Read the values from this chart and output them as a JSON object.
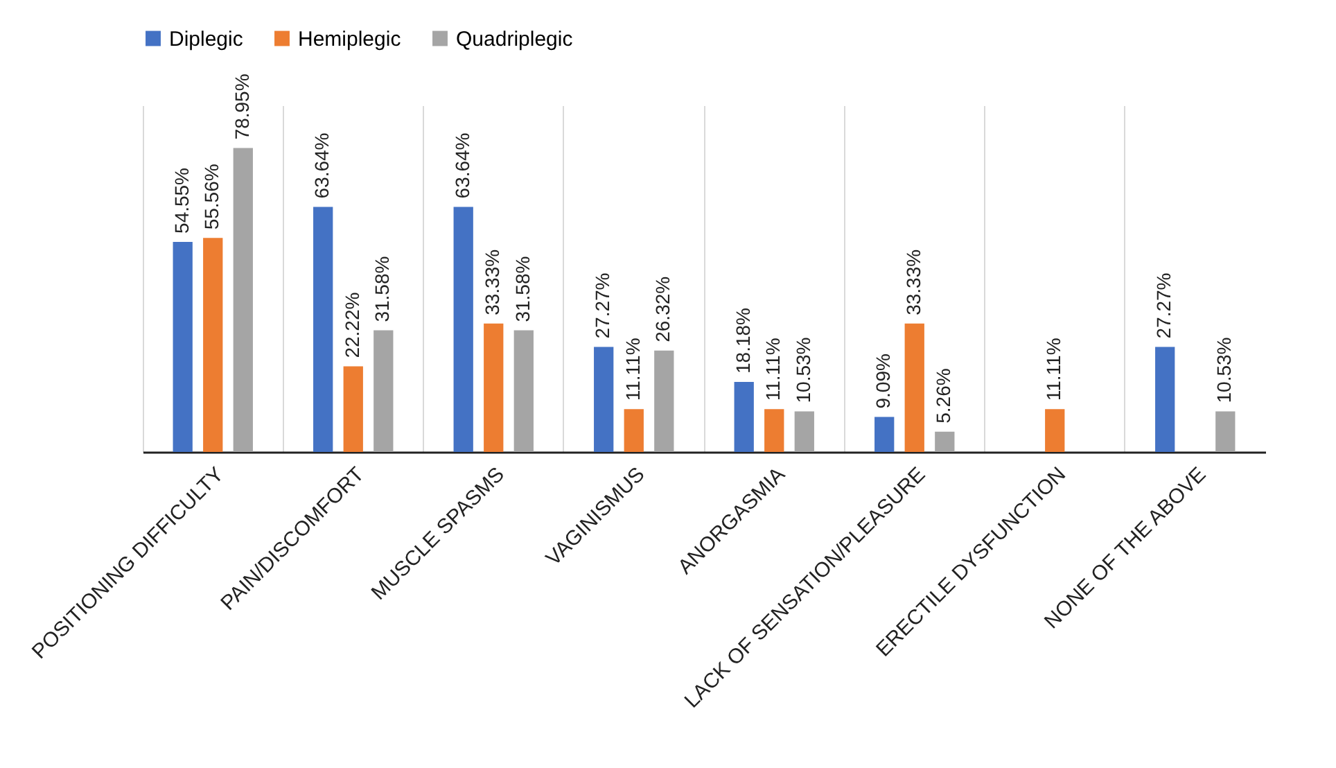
{
  "chart_data": {
    "type": "bar",
    "categories": [
      "POSITIONING DIFFICULTY",
      "PAIN/DISCOMFORT",
      "MUSCLE SPASMS",
      "VAGINISMUS",
      "ANORGASMIA",
      "LACK OF SENSATION/PLEASURE",
      "ERECTILE DYSFUNCTION",
      "NONE OF THE ABOVE"
    ],
    "series": [
      {
        "name": "Diplegic",
        "color": "#4472c4",
        "values": [
          54.55,
          63.64,
          63.64,
          27.27,
          18.18,
          9.09,
          null,
          27.27
        ],
        "value_labels": [
          "54.55%",
          "63.64%",
          "63.64%",
          "27.27%",
          "18.18%",
          "9.09%",
          null,
          "27.27%"
        ]
      },
      {
        "name": "Hemiplegic",
        "color": "#ed7d31",
        "values": [
          55.56,
          22.22,
          33.33,
          11.11,
          11.11,
          33.33,
          11.11,
          null
        ],
        "value_labels": [
          "55.56%",
          "22.22%",
          "33.33%",
          "11.11%",
          "11.11%",
          "33.33%",
          "11.11%",
          null
        ]
      },
      {
        "name": "Quadriplegic",
        "color": "#a5a5a5",
        "values": [
          78.95,
          31.58,
          31.58,
          26.32,
          10.53,
          5.26,
          null,
          10.53
        ],
        "value_labels": [
          "78.95%",
          "31.58%",
          "31.58%",
          "26.32%",
          "10.53%",
          "5.26%",
          null,
          "10.53%"
        ]
      }
    ],
    "ylim": [
      0,
      90
    ],
    "tick_labels": "x",
    "grid": "x",
    "legend": "top"
  }
}
